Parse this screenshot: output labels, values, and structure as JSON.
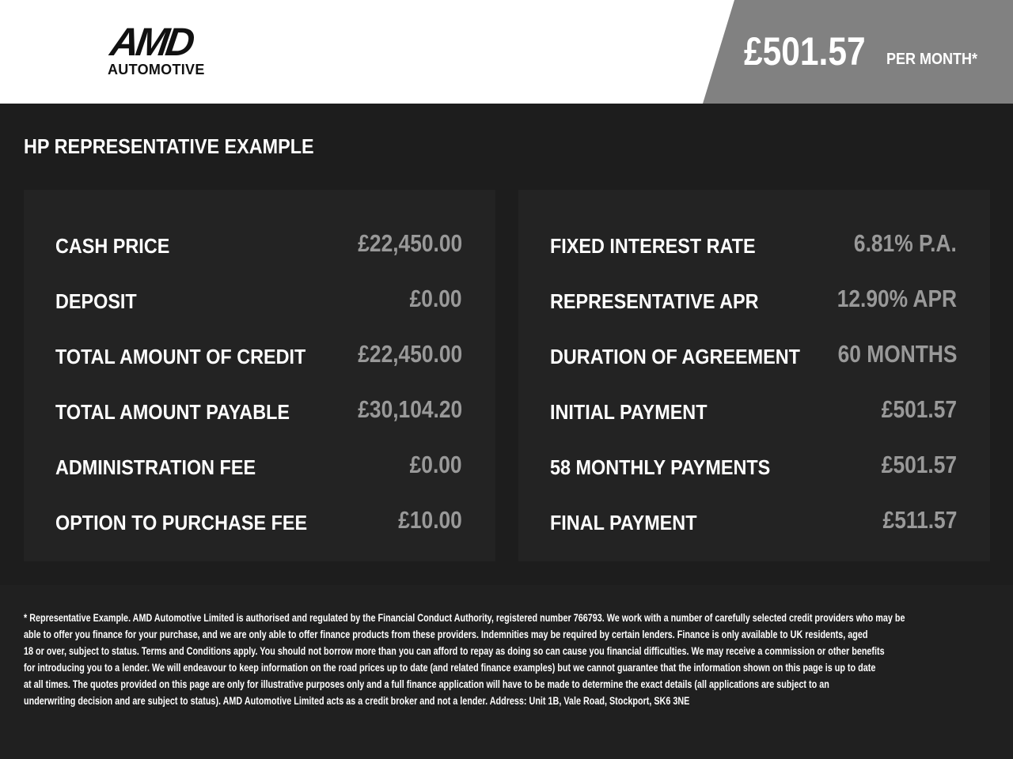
{
  "header": {
    "logo_top": "AMD",
    "logo_bottom": "AUTOMOTIVE",
    "monthly_price": "£501.57",
    "per_month": "PER MONTH*"
  },
  "title": "HP REPRESENTATIVE EXAMPLE",
  "left_panel": [
    {
      "label": "CASH PRICE",
      "value": "£22,450.00"
    },
    {
      "label": "DEPOSIT",
      "value": "£0.00"
    },
    {
      "label": "TOTAL AMOUNT OF CREDIT",
      "value": "£22,450.00"
    },
    {
      "label": "TOTAL AMOUNT PAYABLE",
      "value": "£30,104.20"
    },
    {
      "label": "ADMINISTRATION FEE",
      "value": "£0.00"
    },
    {
      "label": "OPTION TO PURCHASE FEE",
      "value": "£10.00"
    }
  ],
  "right_panel": [
    {
      "label": "FIXED INTEREST RATE",
      "value": "6.81% P.A."
    },
    {
      "label": "REPRESENTATIVE APR",
      "value": "12.90% APR"
    },
    {
      "label": "DURATION OF AGREEMENT",
      "value": "60 MONTHS"
    },
    {
      "label": "INITIAL PAYMENT",
      "value": "£501.57"
    },
    {
      "label": "58 MONTHLY PAYMENTS",
      "value": "£501.57"
    },
    {
      "label": "FINAL PAYMENT",
      "value": "£511.57"
    }
  ],
  "disclaimer_lines": [
    "* Representative Example. AMD Automotive Limited is authorised and regulated by the Financial Conduct Authority, registered number 766793. We work with a number of carefully selected credit providers who may be",
    "able to offer you finance for your purchase, and we are only able to offer finance products from these providers. Indemnities may be required by certain lenders. Finance is only available to UK residents, aged",
    "18 or over, subject to status. Terms and Conditions apply. You should not borrow more than you can afford to repay as doing so can cause you financial difficulties. We may receive a commission or other benefits",
    "for introducing you to a lender. We will endeavour to keep information on the road prices up to date (and related finance examples) but we cannot guarantee that the information shown on this page is up to date",
    "at all times. The quotes provided on this page are only for illustrative purposes only and a full finance application will have to be made to determine the exact details (all applications are subject to an",
    "underwriting decision and are subject to status). AMD Automotive Limited acts as a credit broker and not a lender. Address: Unit 1B, Vale Road, Stockport, SK6 3NE"
  ]
}
